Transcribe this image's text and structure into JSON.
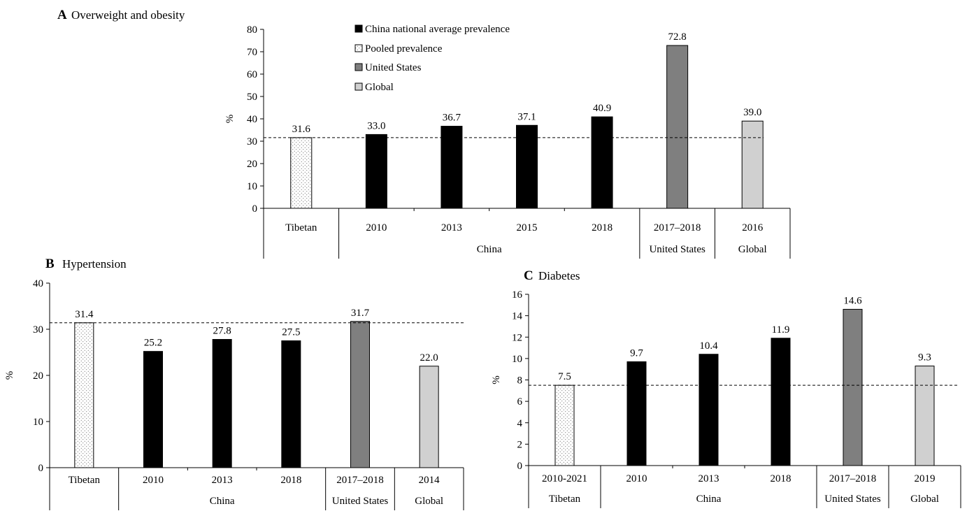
{
  "legend": [
    {
      "label": "China national average prevalence",
      "style": "china"
    },
    {
      "label": "Pooled prevalence",
      "style": "pooled"
    },
    {
      "label": "United States",
      "style": "us"
    },
    {
      "label": "Global",
      "style": "global"
    }
  ],
  "colors": {
    "china": "#000000",
    "pooled": "#ffffff",
    "us": "#7f7f7f",
    "global": "#d0d0d0",
    "axis": "#000000"
  },
  "chart_data": [
    {
      "type": "bar",
      "panel_letter": "A",
      "title": "Overweight and obesity",
      "ylabel": "%",
      "ylim": [
        0,
        80
      ],
      "yticks": [
        0,
        10,
        20,
        30,
        40,
        50,
        60,
        70,
        80
      ],
      "reference_line": 31.6,
      "categories": [
        "Tibetan",
        "2010",
        "2013",
        "2015",
        "2018",
        "2017–2018",
        "2016"
      ],
      "values": [
        31.6,
        33.0,
        36.7,
        37.1,
        40.9,
        72.8,
        39.0
      ],
      "value_labels": [
        "31.6",
        "33.0",
        "36.7",
        "37.1",
        "40.9",
        "72.8",
        "39.0"
      ],
      "bar_styles": [
        "pooled",
        "china",
        "china",
        "china",
        "china",
        "us",
        "global"
      ],
      "groups": [
        {
          "label": "",
          "start": 0,
          "count": 1
        },
        {
          "label": "China",
          "start": 1,
          "count": 4
        },
        {
          "label": "United States",
          "start": 5,
          "count": 1
        },
        {
          "label": "Global",
          "start": 6,
          "count": 1
        }
      ],
      "show_legend": true
    },
    {
      "type": "bar",
      "panel_letter": "B",
      "title": "Hypertension",
      "ylabel": "%",
      "ylim": [
        0,
        40
      ],
      "yticks": [
        0,
        10,
        20,
        30,
        40
      ],
      "reference_line": 31.4,
      "categories": [
        "Tibetan",
        "2010",
        "2013",
        "2018",
        "2017–2018",
        "2014"
      ],
      "values": [
        31.4,
        25.2,
        27.8,
        27.5,
        31.7,
        22.0
      ],
      "value_labels": [
        "31.4",
        "25.2",
        "27.8",
        "27.5",
        "31.7",
        "22.0"
      ],
      "bar_styles": [
        "pooled",
        "china",
        "china",
        "china",
        "us",
        "global"
      ],
      "groups": [
        {
          "label": "",
          "start": 0,
          "count": 1
        },
        {
          "label": "China",
          "start": 1,
          "count": 3
        },
        {
          "label": "United States",
          "start": 4,
          "count": 1
        },
        {
          "label": "Global",
          "start": 5,
          "count": 1
        }
      ],
      "show_legend": false
    },
    {
      "type": "bar",
      "panel_letter": "C",
      "title": "Diabetes",
      "ylabel": "%",
      "ylim": [
        0,
        16
      ],
      "yticks": [
        0,
        2,
        4,
        6,
        8,
        10,
        12,
        14,
        16
      ],
      "reference_line": 7.5,
      "categories": [
        "2010-2021",
        "2010",
        "2013",
        "2018",
        "2017–2018",
        "2019"
      ],
      "values": [
        7.5,
        9.7,
        10.4,
        11.9,
        14.6,
        9.3
      ],
      "value_labels": [
        "7.5",
        "9.7",
        "10.4",
        "11.9",
        "14.6",
        "9.3"
      ],
      "bar_styles": [
        "pooled",
        "china",
        "china",
        "china",
        "us",
        "global"
      ],
      "groups": [
        {
          "label": "Tibetan",
          "start": 0,
          "count": 1
        },
        {
          "label": "China",
          "start": 1,
          "count": 3
        },
        {
          "label": "United States",
          "start": 4,
          "count": 1
        },
        {
          "label": "Global",
          "start": 5,
          "count": 1
        }
      ],
      "show_legend": false
    }
  ]
}
